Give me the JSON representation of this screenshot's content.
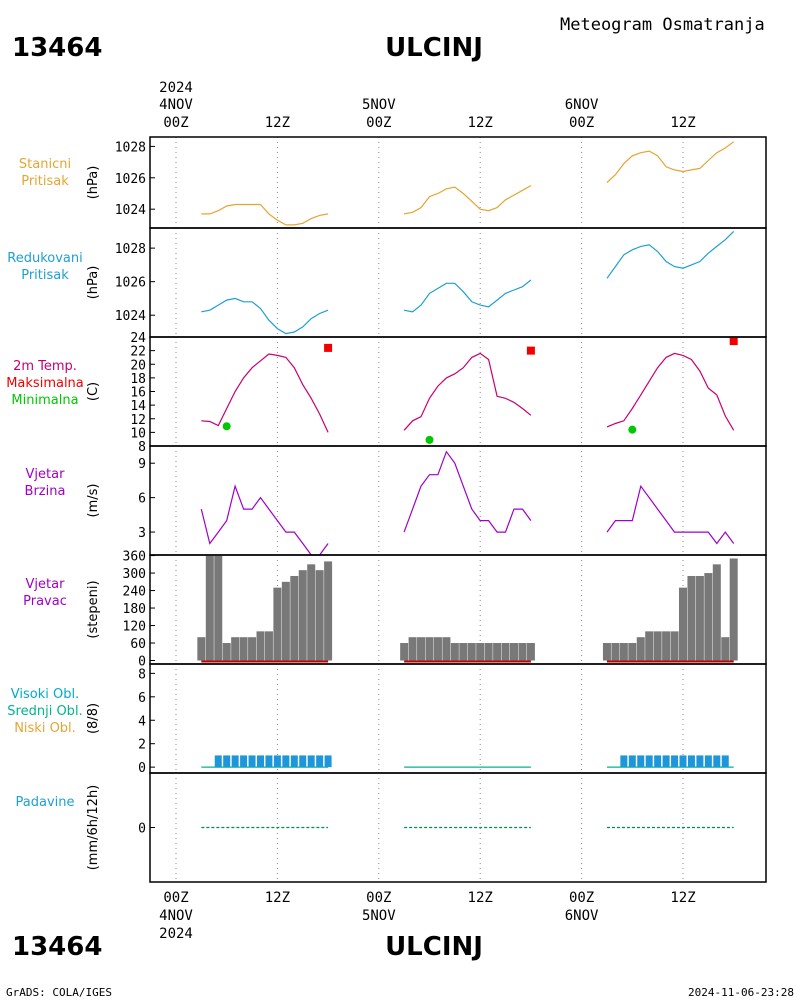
{
  "header": {
    "station_id": "13464",
    "station_name": "ULCINJ",
    "title": "Meteogram Osmatranja"
  },
  "footer": {
    "credit": "GrADS: COLA/IGES",
    "timestamp": "2024-11-06-23:28"
  },
  "time_axis": {
    "top": [
      {
        "l1": "2024",
        "l2": "4NOV",
        "l3": "00Z"
      },
      {
        "l1": "",
        "l2": "",
        "l3": "12Z"
      },
      {
        "l1": "",
        "l2": "5NOV",
        "l3": "00Z"
      },
      {
        "l1": "",
        "l2": "",
        "l3": "12Z"
      },
      {
        "l1": "",
        "l2": "6NOV",
        "l3": "00Z"
      },
      {
        "l1": "",
        "l2": "",
        "l3": "12Z"
      }
    ],
    "bottom": [
      {
        "l1": "00Z",
        "l2": "4NOV",
        "l3": "2024"
      },
      {
        "l1": "12Z",
        "l2": "",
        "l3": ""
      },
      {
        "l1": "00Z",
        "l2": "5NOV",
        "l3": ""
      },
      {
        "l1": "12Z",
        "l2": "",
        "l3": ""
      },
      {
        "l1": "00Z",
        "l2": "6NOV",
        "l3": ""
      },
      {
        "l1": "12Z",
        "l2": "",
        "l3": ""
      }
    ]
  },
  "colors": {
    "station_pressure": "#e6a532",
    "reduced_pressure": "#1ea0d2",
    "temp_line": "#c8006e",
    "temp_max": "#f00000",
    "temp_min": "#00c800",
    "wind": "#a000c8",
    "wind_dir_bar": "#787878",
    "wind_dir_base": "#c80000",
    "cloud_high": "#00aad2",
    "cloud_mid": "#00b48c",
    "cloud_low": "#e6a532",
    "cloud_bar": "#1e96dc",
    "precip": "#1ea0d2",
    "precip_line": "#008c50"
  },
  "chart_data": [
    {
      "id": "station_pressure",
      "type": "line",
      "labels": [
        "Stanicni",
        "Pritisak"
      ],
      "ylabel": "(hPa)",
      "ylim": [
        1022.8,
        1028.6
      ],
      "yticks": [
        1024,
        1026,
        1028
      ],
      "x_unit": "hours from 2024-11-04 00Z",
      "segments": [
        {
          "x": [
            3,
            4,
            5,
            6,
            7,
            8,
            9,
            10,
            11,
            12,
            13,
            14,
            15,
            16,
            17,
            18
          ],
          "y": [
            1023.7,
            1023.7,
            1023.9,
            1024.2,
            1024.3,
            1024.3,
            1024.3,
            1024.3,
            1023.7,
            1023.3,
            1023.0,
            1023.0,
            1023.1,
            1023.4,
            1023.6,
            1023.7
          ]
        },
        {
          "x": [
            27,
            28,
            29,
            30,
            31,
            32,
            33,
            34,
            35,
            36,
            37,
            38,
            39,
            40,
            41,
            42
          ],
          "y": [
            1023.7,
            1023.8,
            1024.1,
            1024.8,
            1025.0,
            1025.3,
            1025.4,
            1025.0,
            1024.5,
            1024.0,
            1023.9,
            1024.1,
            1024.6,
            1024.9,
            1025.2,
            1025.5
          ]
        },
        {
          "x": [
            51,
            52,
            53,
            54,
            55,
            56,
            57,
            58,
            59,
            60,
            61,
            62,
            63,
            64,
            65,
            66
          ],
          "y": [
            1025.7,
            1026.2,
            1026.9,
            1027.4,
            1027.6,
            1027.7,
            1027.4,
            1026.7,
            1026.5,
            1026.4,
            1026.5,
            1026.6,
            1027.1,
            1027.6,
            1027.9,
            1028.3
          ]
        }
      ]
    },
    {
      "id": "reduced_pressure",
      "type": "line",
      "labels": [
        "Redukovani",
        "Pritisak"
      ],
      "ylabel": "(hPa)",
      "ylim": [
        1022.7,
        1029.2
      ],
      "yticks": [
        1024,
        1026,
        1028
      ],
      "x_unit": "hours from 2024-11-04 00Z",
      "segments": [
        {
          "x": [
            3,
            4,
            5,
            6,
            7,
            8,
            9,
            10,
            11,
            12,
            13,
            14,
            15,
            16,
            17,
            18
          ],
          "y": [
            1024.2,
            1024.3,
            1024.6,
            1024.9,
            1025.0,
            1024.8,
            1024.8,
            1024.4,
            1023.7,
            1023.2,
            1022.9,
            1023.0,
            1023.3,
            1023.8,
            1024.1,
            1024.3
          ]
        },
        {
          "x": [
            27,
            28,
            29,
            30,
            31,
            32,
            33,
            34,
            35,
            36,
            37,
            38,
            39,
            40,
            41,
            42
          ],
          "y": [
            1024.3,
            1024.2,
            1024.6,
            1025.3,
            1025.6,
            1025.9,
            1025.9,
            1025.4,
            1024.8,
            1024.6,
            1024.5,
            1024.9,
            1025.3,
            1025.5,
            1025.7,
            1026.1
          ]
        },
        {
          "x": [
            51,
            52,
            53,
            54,
            55,
            56,
            57,
            58,
            59,
            60,
            61,
            62,
            63,
            64,
            65,
            66
          ],
          "y": [
            1026.2,
            1026.9,
            1027.6,
            1027.9,
            1028.1,
            1028.2,
            1027.8,
            1027.2,
            1026.9,
            1026.8,
            1027.0,
            1027.2,
            1027.7,
            1028.1,
            1028.5,
            1029.0
          ]
        }
      ]
    },
    {
      "id": "temperature",
      "type": "line",
      "labels": [
        "2m Temp.",
        "Maksimalna",
        "Minimalna"
      ],
      "ylabel": "(C)",
      "ylim": [
        8,
        24
      ],
      "yticks": [
        8,
        10,
        12,
        14,
        16,
        18,
        20,
        22,
        24
      ],
      "x_unit": "hours from 2024-11-04 00Z",
      "segments": [
        {
          "x": [
            3,
            4,
            5,
            6,
            7,
            8,
            9,
            10,
            11,
            12,
            13,
            14,
            15,
            16,
            17,
            18
          ],
          "y": [
            11.7,
            11.6,
            11.0,
            13.5,
            16.0,
            18.0,
            19.5,
            20.5,
            21.5,
            21.3,
            21.0,
            19.5,
            17.0,
            15.0,
            12.7,
            10.0
          ]
        },
        {
          "x": [
            27,
            28,
            29,
            30,
            31,
            32,
            33,
            34,
            35,
            36,
            37,
            38,
            39,
            40,
            41,
            42
          ],
          "y": [
            10.3,
            11.7,
            12.3,
            15.0,
            16.8,
            18.0,
            18.6,
            19.5,
            21.0,
            21.6,
            20.7,
            15.3,
            15.0,
            14.4,
            13.5,
            12.5
          ]
        },
        {
          "x": [
            51,
            52,
            53,
            54,
            55,
            56,
            57,
            58,
            59,
            60,
            61,
            62,
            63,
            64,
            65,
            66
          ],
          "y": [
            10.8,
            11.3,
            11.7,
            13.5,
            15.5,
            17.5,
            19.5,
            21.0,
            21.6,
            21.3,
            20.7,
            19.0,
            16.5,
            15.5,
            12.4,
            10.3
          ]
        }
      ],
      "max_points": [
        {
          "x": 18,
          "y": 22.4
        },
        {
          "x": 42,
          "y": 22.0
        },
        {
          "x": 66,
          "y": 23.4
        }
      ],
      "min_points": [
        {
          "x": 6,
          "y": 10.9
        },
        {
          "x": 30,
          "y": 8.9
        },
        {
          "x": 54,
          "y": 10.4
        }
      ]
    },
    {
      "id": "wind_speed",
      "type": "line",
      "labels": [
        "Vjetar",
        "Brzina"
      ],
      "ylabel": "(m/s)",
      "ylim": [
        1,
        10.5
      ],
      "yticks": [
        3,
        6,
        9
      ],
      "x_unit": "hours from 2024-11-04 00Z",
      "segments": [
        {
          "x": [
            3,
            4,
            5,
            6,
            7,
            8,
            9,
            10,
            11,
            12,
            13,
            14,
            15,
            16,
            17,
            18
          ],
          "y": [
            5,
            2,
            3,
            4,
            7,
            5,
            5,
            6,
            5,
            4,
            3,
            3,
            2,
            1,
            1,
            2
          ]
        },
        {
          "x": [
            27,
            28,
            29,
            30,
            31,
            32,
            33,
            34,
            35,
            36,
            37,
            38,
            39,
            40,
            41,
            42
          ],
          "y": [
            3,
            5,
            7,
            8,
            8,
            10,
            9,
            7,
            5,
            4,
            4,
            3,
            3,
            5,
            5,
            4
          ]
        },
        {
          "x": [
            51,
            52,
            53,
            54,
            55,
            56,
            57,
            58,
            59,
            60,
            61,
            62,
            63,
            64,
            65,
            66
          ],
          "y": [
            3,
            4,
            4,
            4,
            7,
            6,
            5,
            4,
            3,
            3,
            3,
            3,
            3,
            2,
            3,
            2
          ]
        }
      ]
    },
    {
      "id": "wind_direction",
      "type": "bar",
      "labels": [
        "Vjetar",
        "Pravac"
      ],
      "ylabel": "(stepeni)",
      "ylim": [
        -12,
        362
      ],
      "yticks": [
        0,
        60,
        120,
        180,
        240,
        300,
        360
      ],
      "x_unit": "hours from 2024-11-04 00Z",
      "segments": [
        {
          "x": [
            3,
            4,
            5,
            6,
            7,
            8,
            9,
            10,
            11,
            12,
            13,
            14,
            15,
            16,
            17,
            18
          ],
          "y": [
            80,
            360,
            360,
            60,
            80,
            80,
            80,
            100,
            100,
            250,
            270,
            290,
            310,
            330,
            310,
            340
          ]
        },
        {
          "x": [
            27,
            28,
            29,
            30,
            31,
            32,
            33,
            34,
            35,
            36,
            37,
            38,
            39,
            40,
            41,
            42
          ],
          "y": [
            60,
            80,
            80,
            80,
            80,
            80,
            60,
            60,
            60,
            60,
            60,
            60,
            60,
            60,
            60,
            60
          ]
        },
        {
          "x": [
            51,
            52,
            53,
            54,
            55,
            56,
            57,
            58,
            59,
            60,
            61,
            62,
            63,
            64,
            65,
            66
          ],
          "y": [
            60,
            60,
            60,
            60,
            80,
            100,
            100,
            100,
            100,
            250,
            290,
            290,
            300,
            330,
            80,
            350
          ]
        }
      ]
    },
    {
      "id": "clouds",
      "type": "bar",
      "labels": [
        "Visoki Obl.",
        "Srednji Obl.",
        "Niski Obl."
      ],
      "ylabel": "(8/8)",
      "ylim": [
        -0.5,
        8.8
      ],
      "yticks": [
        0,
        2,
        4,
        6,
        8
      ],
      "x_unit": "hours from 2024-11-04 00Z",
      "segments": [
        {
          "x": [
            5,
            6,
            7,
            8,
            9,
            10,
            11,
            12,
            13,
            14,
            15,
            16,
            17,
            18
          ],
          "y": [
            1,
            1,
            1,
            1,
            1,
            1,
            1,
            1,
            1,
            1,
            1,
            1,
            1,
            1
          ]
        },
        {
          "x": [],
          "y": []
        },
        {
          "x": [
            53,
            54,
            55,
            56,
            57,
            58,
            59,
            60,
            61,
            62,
            63,
            64,
            65
          ],
          "y": [
            1,
            1,
            1,
            1,
            1,
            1,
            1,
            1,
            1,
            1,
            1,
            1,
            1
          ]
        }
      ],
      "baseline_spans": [
        [
          3,
          18
        ],
        [
          27,
          42
        ],
        [
          51,
          66
        ]
      ]
    },
    {
      "id": "precipitation",
      "type": "bar",
      "labels": [
        "Padavine"
      ],
      "ylabel": "(mm/6h/12h)",
      "ylim": [
        -5,
        5
      ],
      "yticks": [
        0
      ],
      "x_unit": "hours from 2024-11-04 00Z",
      "segments": [
        {
          "x": [
            3,
            18
          ],
          "y": [
            0,
            0
          ]
        },
        {
          "x": [
            27,
            42
          ],
          "y": [
            0,
            0
          ]
        },
        {
          "x": [
            51,
            66
          ],
          "y": [
            0,
            0
          ]
        }
      ]
    }
  ]
}
